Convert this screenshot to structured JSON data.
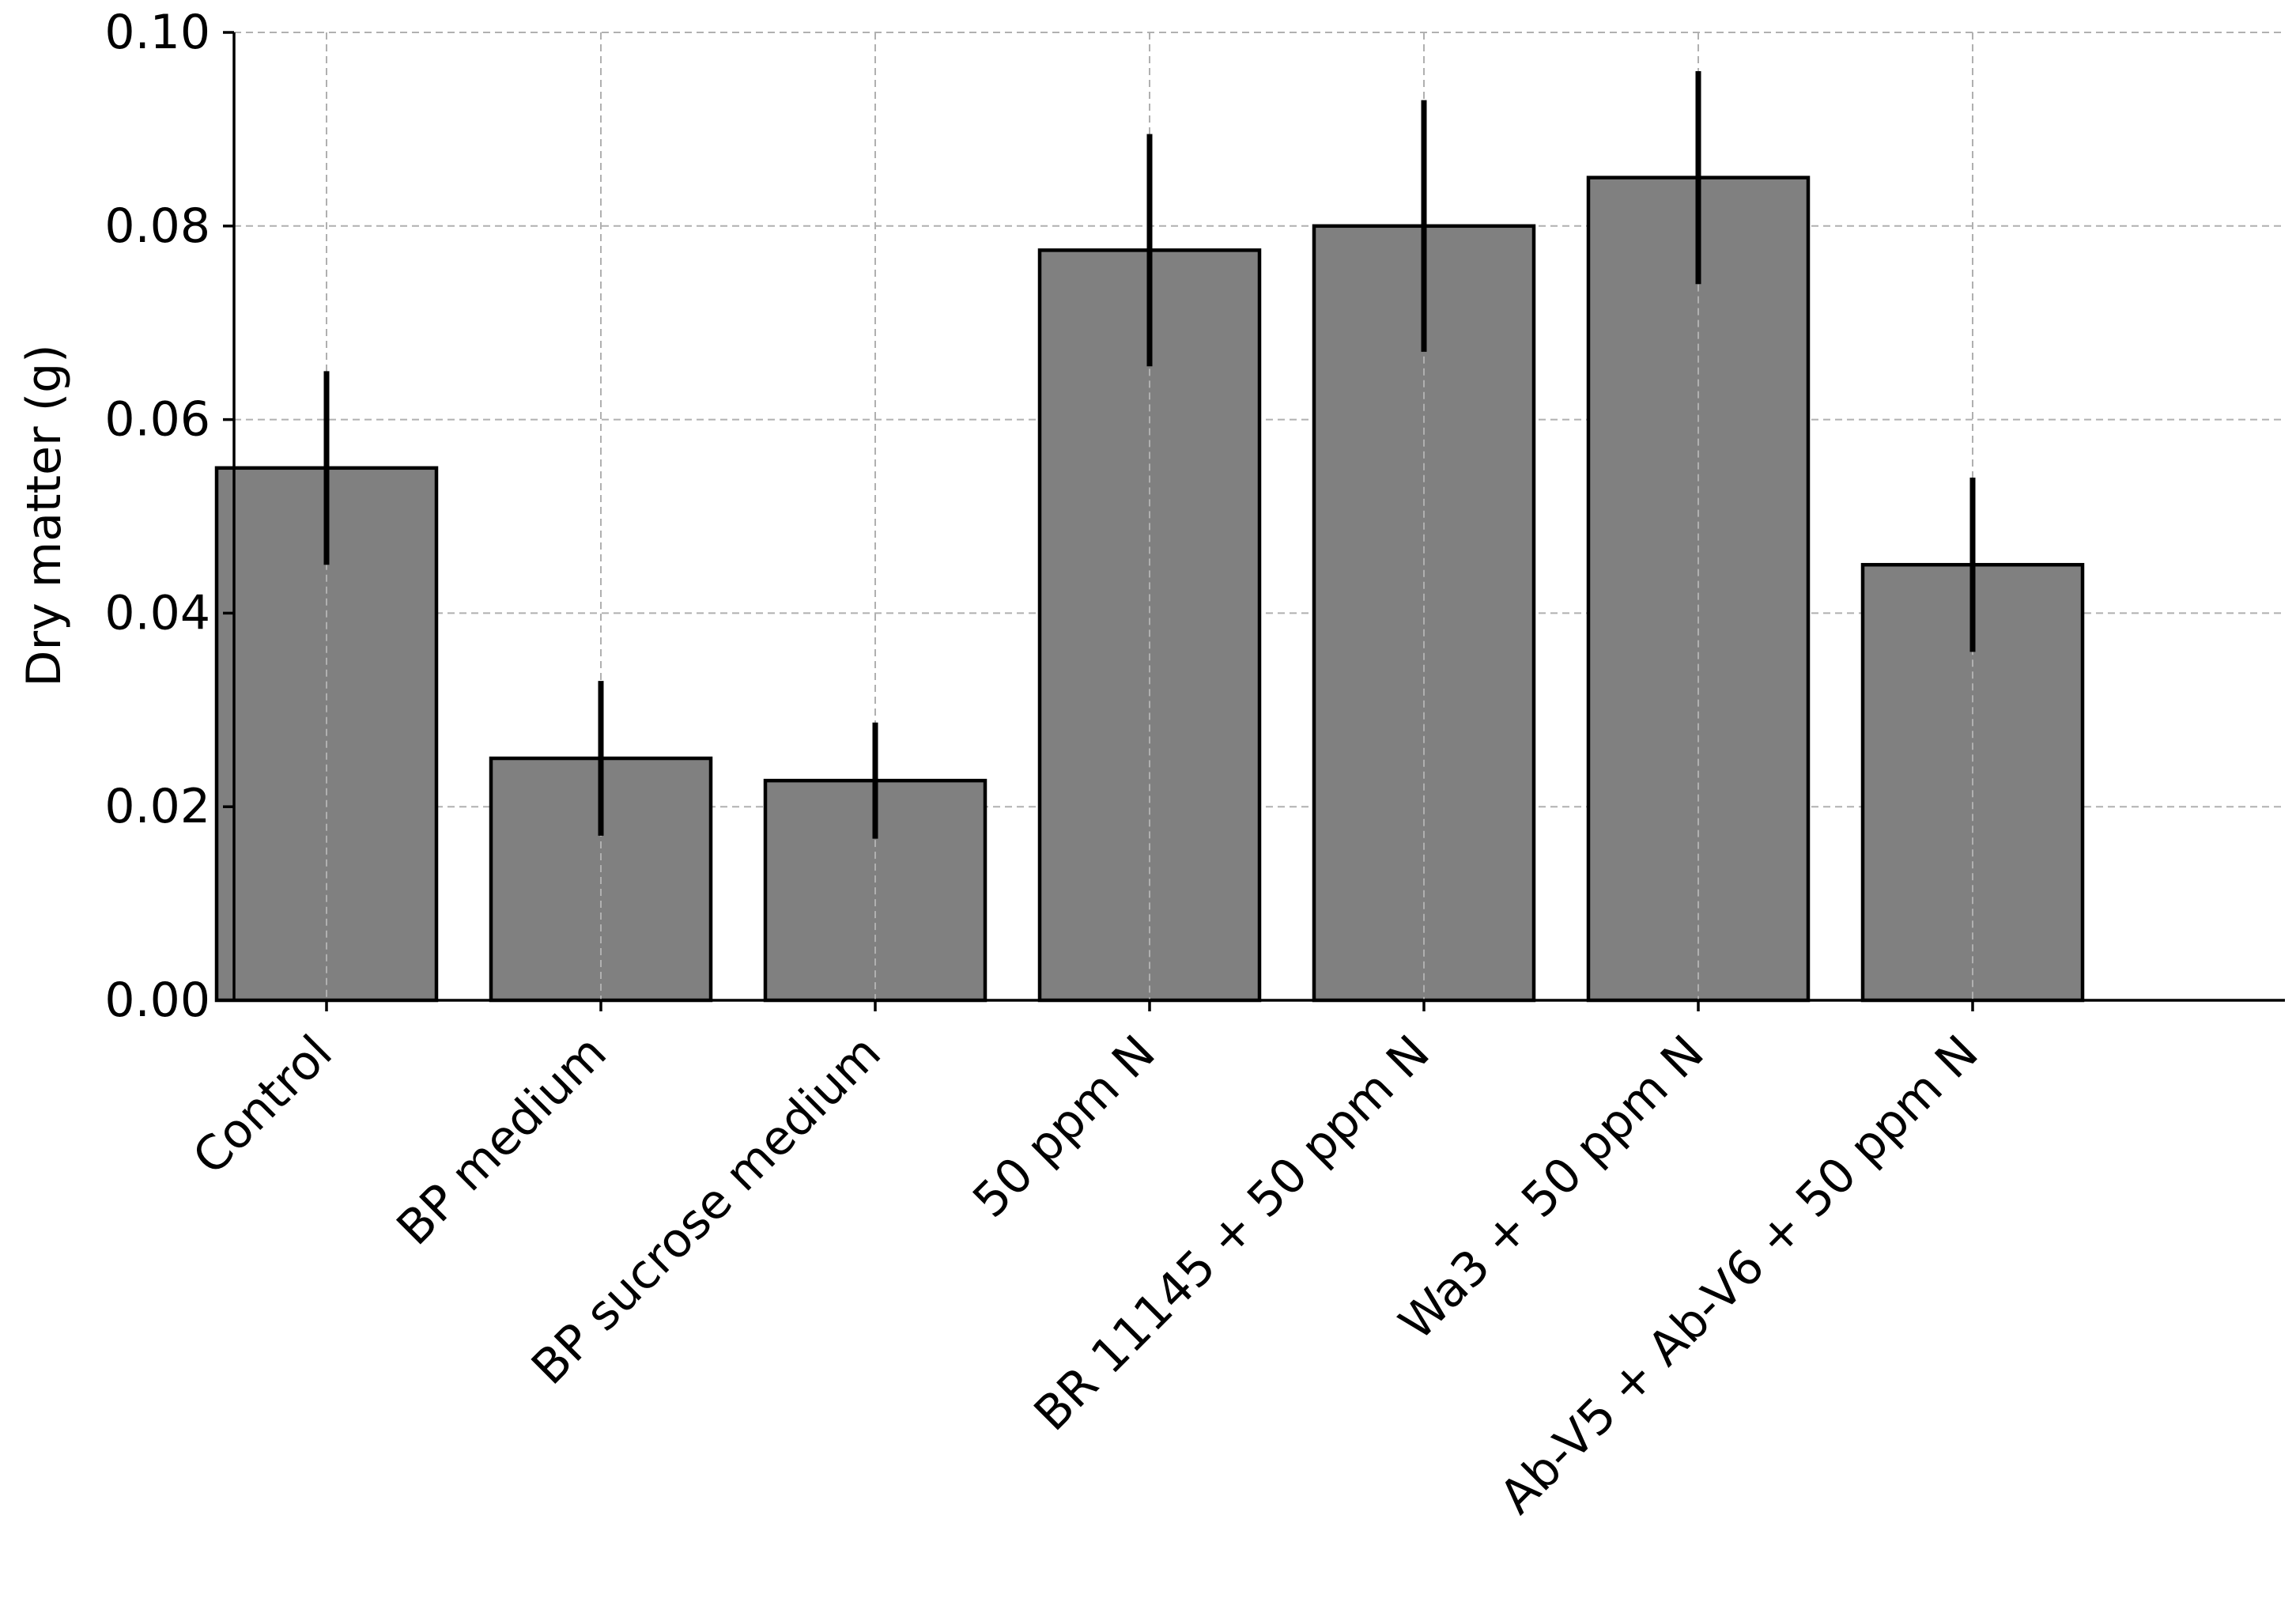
{
  "chart_data": {
    "type": "bar",
    "title": "",
    "xlabel": "",
    "ylabel": "Dry matter (g)",
    "categories": [
      "Control",
      "BP medium",
      "BP sucrose medium",
      "50 ppm N",
      "BR 11145 + 50 ppm N",
      "Wa3 + 50 ppm N",
      "Ab-V5 + Ab-V6 + 50 ppm N"
    ],
    "values": [
      0.055,
      0.025,
      0.0227,
      0.0775,
      0.08,
      0.085,
      0.045
    ],
    "errors": [
      0.01,
      0.008,
      0.006,
      0.012,
      0.013,
      0.011,
      0.009
    ],
    "ylim": [
      0.0,
      0.1
    ],
    "yticks": [
      0.0,
      0.02,
      0.04,
      0.06,
      0.08,
      0.1
    ],
    "ytick_labels": [
      "0.00",
      "0.02",
      "0.04",
      "0.06",
      "0.08",
      "0.10"
    ],
    "grid": true,
    "colors": {
      "bar_fill": "#808080",
      "bar_edge": "#000000",
      "error_bar": "#000000",
      "grid": "#b0b0b0"
    }
  }
}
